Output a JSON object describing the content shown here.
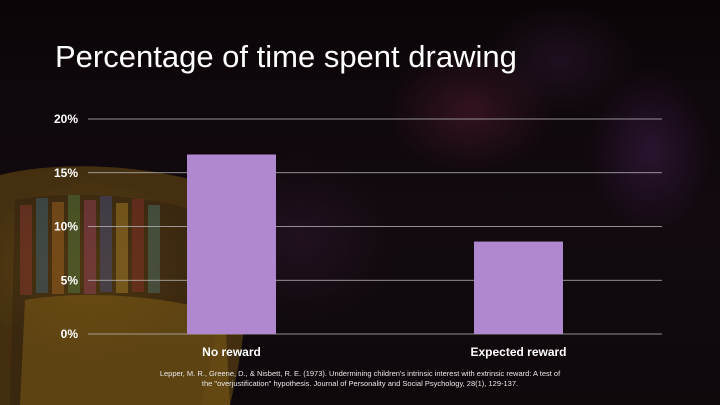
{
  "slide": {
    "title": "Percentage of time spent drawing",
    "citation_line1": "Lepper, M. R., Greene, D., & Nisbett, R. E. (1973). Undermining children's intrinsic interest with extrinsic reward: A test of",
    "citation_line2": "the \"overjustification\" hypothesis. Journal of Personality and Social Psychology, 28(1), 129-137."
  },
  "chart_data": {
    "type": "bar",
    "categories": [
      "No reward",
      "Expected reward"
    ],
    "values": [
      16.7,
      8.6
    ],
    "ylim": [
      0,
      20
    ],
    "yticks": [
      0,
      5,
      10,
      15,
      20
    ],
    "ytick_labels": [
      "0%",
      "5%",
      "10%",
      "15%",
      "20%"
    ],
    "grid": true,
    "legend": "none",
    "bar_color": "#b088cf",
    "grid_color": "#bdbdbd"
  }
}
